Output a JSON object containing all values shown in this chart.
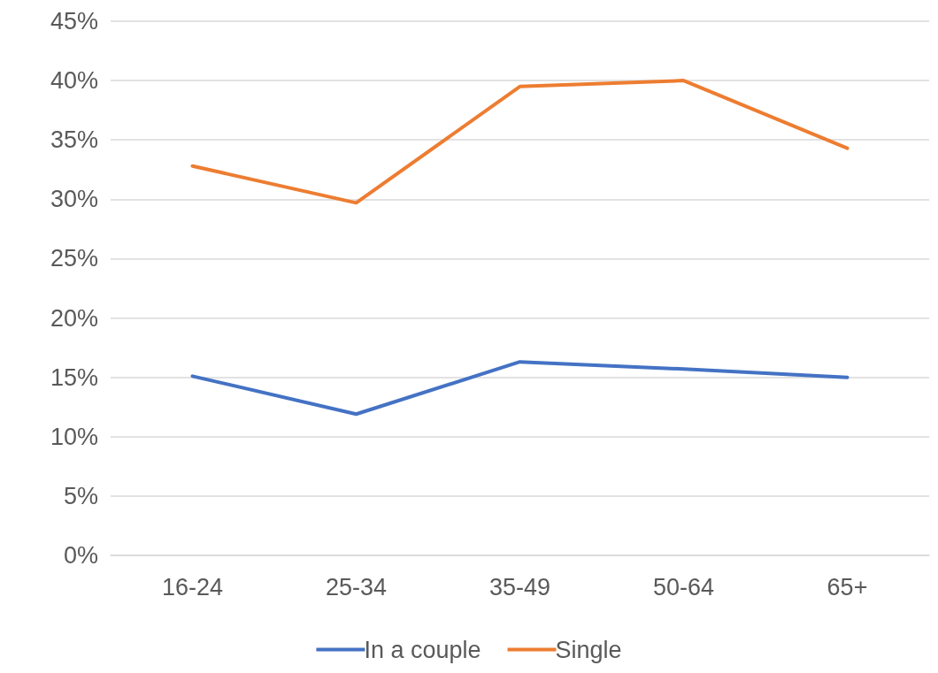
{
  "chart_data": {
    "type": "line",
    "categories": [
      "16-24",
      "25-34",
      "35-49",
      "50-64",
      "65+"
    ],
    "series": [
      {
        "name": "In a couple",
        "color": "#4472c4",
        "values": [
          15.1,
          11.9,
          16.3,
          15.7,
          15.0
        ]
      },
      {
        "name": "Single",
        "color": "#ed7d31",
        "values": [
          32.8,
          29.7,
          39.5,
          40.0,
          34.3
        ]
      }
    ],
    "ylim": [
      0,
      45
    ],
    "yticks": [
      {
        "value": 0,
        "label": "0%"
      },
      {
        "value": 5,
        "label": "5%"
      },
      {
        "value": 10,
        "label": "10%"
      },
      {
        "value": 15,
        "label": "15%"
      },
      {
        "value": 20,
        "label": "20%"
      },
      {
        "value": 25,
        "label": "25%"
      },
      {
        "value": 30,
        "label": "30%"
      },
      {
        "value": 35,
        "label": "35%"
      },
      {
        "value": 40,
        "label": "40%"
      },
      {
        "value": 45,
        "label": "45%"
      }
    ],
    "grid": "y",
    "legend": "bottom",
    "marker": "none",
    "line_style": "solid"
  }
}
